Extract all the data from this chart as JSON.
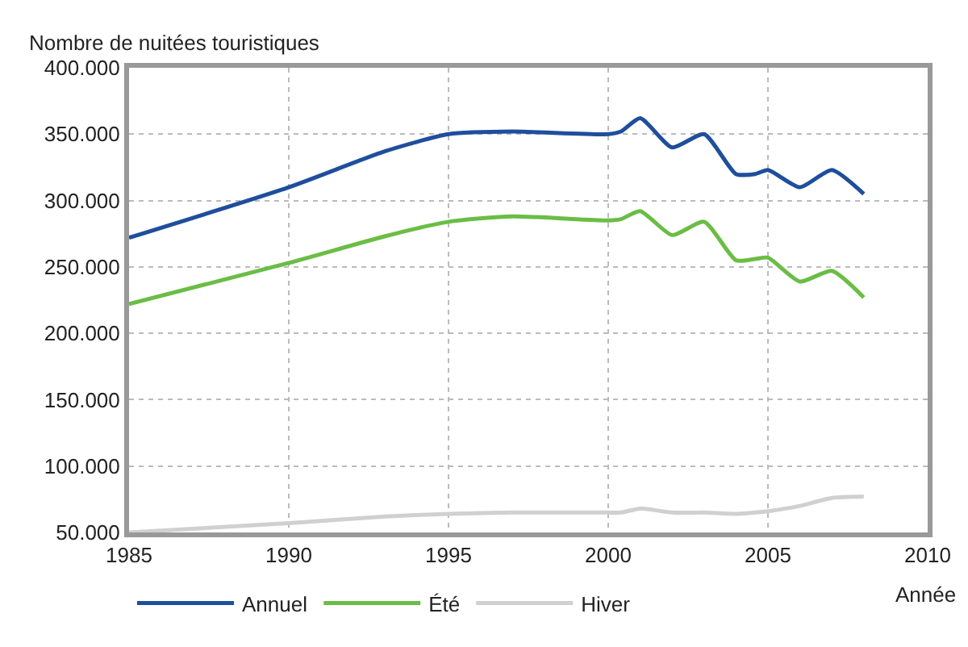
{
  "chart_data": {
    "type": "line",
    "ylabel": "Nombre de nuitées touristiques",
    "xlabel": "Année",
    "x": [
      1985,
      1990,
      1993,
      1995,
      1997,
      2000,
      2000.4,
      2001,
      2002,
      2003,
      2004,
      2004.6,
      2005,
      2006,
      2007,
      2008
    ],
    "series": [
      {
        "name": "Annuel",
        "color": "#1f4e9c",
        "values": [
          272000,
          310000,
          337000,
          350000,
          352000,
          350000,
          352000,
          362000,
          340000,
          350000,
          320000,
          320000,
          323000,
          310000,
          323000,
          305000
        ]
      },
      {
        "name": "Été",
        "color": "#6abd45",
        "values": [
          222000,
          253000,
          273000,
          284000,
          288000,
          285000,
          286000,
          292000,
          274000,
          284000,
          255000,
          256000,
          257000,
          239000,
          247000,
          227000
        ]
      },
      {
        "name": "Hiver",
        "color": "#d0d0d0",
        "values": [
          50000,
          57000,
          62000,
          64000,
          65000,
          65000,
          65000,
          68000,
          65000,
          65000,
          64000,
          65000,
          66000,
          70000,
          76000,
          77000
        ]
      }
    ],
    "xlim": [
      1985,
      2010
    ],
    "xticks": [
      1985,
      1990,
      1995,
      2000,
      2005,
      2010
    ],
    "ylim": [
      50000,
      400000
    ],
    "yticks": [
      {
        "value": 50000,
        "label": "50.000"
      },
      {
        "value": 100000,
        "label": "100.000"
      },
      {
        "value": 150000,
        "label": "150.000"
      },
      {
        "value": 200000,
        "label": "200.000"
      },
      {
        "value": 250000,
        "label": "250.000"
      },
      {
        "value": 300000,
        "label": "300.000"
      },
      {
        "value": 350000,
        "label": "350.000"
      },
      {
        "value": 400000,
        "label": "400.000"
      }
    ],
    "grid": true,
    "legend": "bottom",
    "marker": "none",
    "line_style": "solid"
  }
}
